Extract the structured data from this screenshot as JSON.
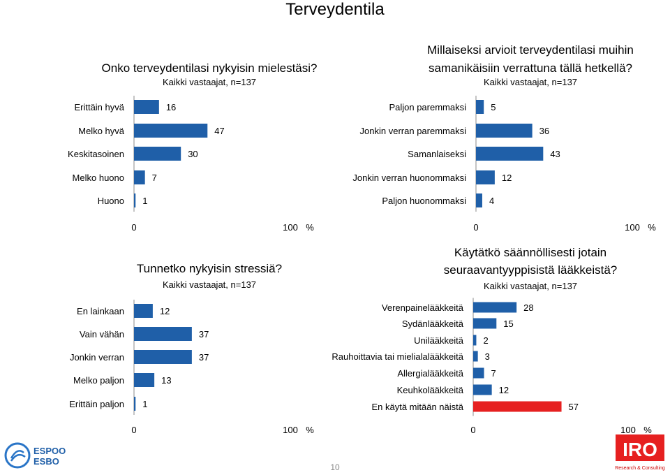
{
  "page": {
    "title": "Terveydentila",
    "page_number": "10",
    "espoo_logo": {
      "line1": "ESPOO",
      "line2": "ESBO"
    },
    "iro_logo": {
      "name": "IRO",
      "tagline": "Research & Consulting"
    }
  },
  "colors": {
    "bar": "#1f5fa8",
    "highlight": "#e62020"
  },
  "chart_data": [
    {
      "type": "bar",
      "orientation": "horizontal",
      "title": "Onko terveydentilasi nykyisin mielestäsi?",
      "subtitle": "Kaikki vastaajat, n=137",
      "categories": [
        "Erittäin hyvä",
        "Melko hyvä",
        "Keskitasoinen",
        "Melko huono",
        "Huono"
      ],
      "values": [
        16,
        47,
        30,
        7,
        1
      ],
      "xlim": [
        0,
        100
      ],
      "xticks": [
        "0",
        "100"
      ],
      "unit": "%"
    },
    {
      "type": "bar",
      "orientation": "horizontal",
      "title": "Millaiseksi arvioit terveydentilasi muihin samanikäisiin verrattuna tällä hetkellä?",
      "subtitle": "Kaikki vastaajat, n=137",
      "categories": [
        "Paljon paremmaksi",
        "Jonkin verran paremmaksi",
        "Samanlaiseksi",
        "Jonkin verran huonommaksi",
        "Paljon huonommaksi"
      ],
      "values": [
        5,
        36,
        43,
        12,
        4
      ],
      "xlim": [
        0,
        100
      ],
      "xticks": [
        "0",
        "100"
      ],
      "unit": "%"
    },
    {
      "type": "bar",
      "orientation": "horizontal",
      "title": "Tunnetko nykyisin stressiä?",
      "subtitle": "Kaikki vastaajat, n=137",
      "categories": [
        "En lainkaan",
        "Vain vähän",
        "Jonkin verran",
        "Melko paljon",
        "Erittäin paljon"
      ],
      "values": [
        12,
        37,
        37,
        13,
        1
      ],
      "xlim": [
        0,
        100
      ],
      "xticks": [
        "0",
        "100"
      ],
      "unit": "%"
    },
    {
      "type": "bar",
      "orientation": "horizontal",
      "title": "Käytätkö säännöllisesti jotain seuraavantyyppisistä lääkkeistä?",
      "subtitle": "Kaikki vastaajat, n=137",
      "categories": [
        "Verenpainelääkkeitä",
        "Sydänlääkkeitä",
        "Unilääkkeitä",
        "Rauhoittavia tai mielialalääkkeitä",
        "Allergialääkkeitä",
        "Keuhkolääkkeitä",
        "En käytä mitään näistä"
      ],
      "values": [
        28,
        15,
        2,
        3,
        7,
        12,
        57
      ],
      "highlight_index": 6,
      "xlim": [
        0,
        100
      ],
      "xticks": [
        "0",
        "100"
      ],
      "unit": "%"
    }
  ]
}
